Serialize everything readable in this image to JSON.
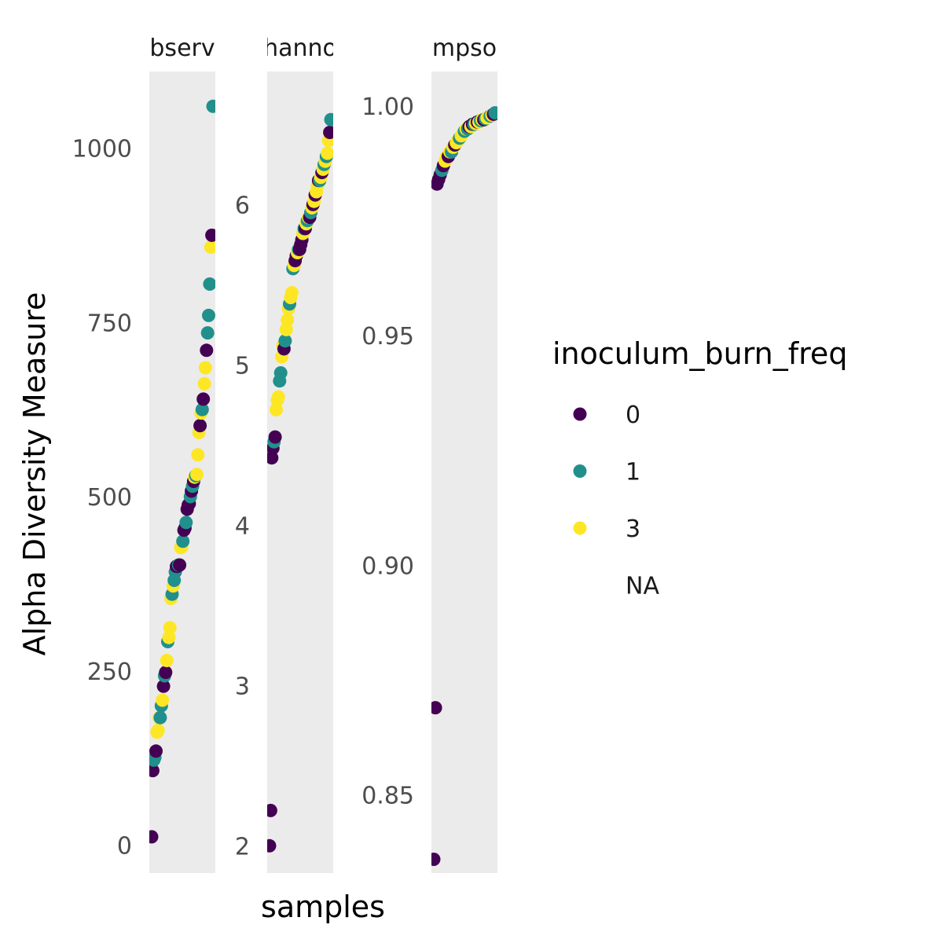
{
  "chart_data": {
    "type": "scatter",
    "ylabel": "Alpha Diversity Measure",
    "xlabel": "samples",
    "legend": {
      "title": "inoculum_burn_freq",
      "placement": "right",
      "entries": [
        {
          "label": "0",
          "color": "#440154"
        },
        {
          "label": "1",
          "color": "#21908C"
        },
        {
          "label": "3",
          "color": "#FDE725"
        },
        {
          "label": "NA",
          "color": null
        }
      ]
    },
    "panels": [
      {
        "title": "Observed",
        "ylim": [
          -40,
          1110
        ],
        "yticks": [
          0,
          250,
          500,
          750,
          1000
        ],
        "ytick_labels": [
          "0",
          "250",
          "500",
          "750",
          "1000"
        ],
        "points": [
          {
            "x": 1,
            "y": 12,
            "g": "0"
          },
          {
            "x": 2,
            "y": 107,
            "g": "0"
          },
          {
            "x": 3,
            "y": 122,
            "g": "1"
          },
          {
            "x": 4,
            "y": 126,
            "g": "1"
          },
          {
            "x": 5,
            "y": 135,
            "g": "0"
          },
          {
            "x": 6,
            "y": 162,
            "g": "3"
          },
          {
            "x": 7,
            "y": 165,
            "g": "3"
          },
          {
            "x": 8,
            "y": 183,
            "g": "3"
          },
          {
            "x": 9,
            "y": 183,
            "g": "1"
          },
          {
            "x": 10,
            "y": 200,
            "g": "1"
          },
          {
            "x": 11,
            "y": 208,
            "g": "3"
          },
          {
            "x": 12,
            "y": 228,
            "g": "0"
          },
          {
            "x": 13,
            "y": 243,
            "g": "1"
          },
          {
            "x": 14,
            "y": 248,
            "g": "0"
          },
          {
            "x": 15,
            "y": 265,
            "g": "3"
          },
          {
            "x": 16,
            "y": 292,
            "g": "1"
          },
          {
            "x": 17,
            "y": 298,
            "g": "3"
          },
          {
            "x": 18,
            "y": 312,
            "g": "3"
          },
          {
            "x": 19,
            "y": 354,
            "g": "3"
          },
          {
            "x": 20,
            "y": 360,
            "g": "1"
          },
          {
            "x": 21,
            "y": 372,
            "g": "3"
          },
          {
            "x": 22,
            "y": 380,
            "g": "1"
          },
          {
            "x": 23,
            "y": 392,
            "g": "1"
          },
          {
            "x": 24,
            "y": 400,
            "g": "0"
          },
          {
            "x": 25,
            "y": 400,
            "g": "0"
          },
          {
            "x": 26,
            "y": 402,
            "g": "1"
          },
          {
            "x": 27,
            "y": 402,
            "g": "0"
          },
          {
            "x": 28,
            "y": 427,
            "g": "3"
          },
          {
            "x": 29,
            "y": 428,
            "g": "3"
          },
          {
            "x": 30,
            "y": 436,
            "g": "1"
          },
          {
            "x": 31,
            "y": 452,
            "g": "0"
          },
          {
            "x": 32,
            "y": 455,
            "g": "0"
          },
          {
            "x": 33,
            "y": 463,
            "g": "1"
          },
          {
            "x": 34,
            "y": 482,
            "g": "0"
          },
          {
            "x": 35,
            "y": 488,
            "g": "0"
          },
          {
            "x": 36,
            "y": 490,
            "g": "0"
          },
          {
            "x": 37,
            "y": 500,
            "g": "1"
          },
          {
            "x": 38,
            "y": 508,
            "g": "0"
          },
          {
            "x": 39,
            "y": 515,
            "g": "1"
          },
          {
            "x": 40,
            "y": 522,
            "g": "0"
          },
          {
            "x": 41,
            "y": 528,
            "g": "3"
          },
          {
            "x": 42,
            "y": 530,
            "g": "1"
          },
          {
            "x": 43,
            "y": 532,
            "g": "3"
          },
          {
            "x": 44,
            "y": 560,
            "g": "3"
          },
          {
            "x": 45,
            "y": 592,
            "g": "3"
          },
          {
            "x": 46,
            "y": 602,
            "g": "0"
          },
          {
            "x": 47,
            "y": 620,
            "g": "3"
          },
          {
            "x": 48,
            "y": 625,
            "g": "1"
          },
          {
            "x": 49,
            "y": 640,
            "g": "0"
          },
          {
            "x": 50,
            "y": 662,
            "g": "3"
          },
          {
            "x": 51,
            "y": 685,
            "g": "3"
          },
          {
            "x": 52,
            "y": 710,
            "g": "0"
          },
          {
            "x": 53,
            "y": 735,
            "g": "1"
          },
          {
            "x": 54,
            "y": 760,
            "g": "1"
          },
          {
            "x": 55,
            "y": 805,
            "g": "1"
          },
          {
            "x": 56,
            "y": 858,
            "g": "3"
          },
          {
            "x": 57,
            "y": 875,
            "g": "0"
          },
          {
            "x": 58,
            "y": 1060,
            "g": "1"
          }
        ]
      },
      {
        "title": "Shannon",
        "ylim": [
          1.83,
          6.83
        ],
        "yticks": [
          2,
          3,
          4,
          5,
          6
        ],
        "ytick_labels": [
          "2",
          "3",
          "4",
          "5",
          "6"
        ],
        "points": [
          {
            "x": 1,
            "y": 2.0,
            "g": "0"
          },
          {
            "x": 2,
            "y": 2.22,
            "g": "0"
          },
          {
            "x": 3,
            "y": 4.42,
            "g": "0"
          },
          {
            "x": 4,
            "y": 4.48,
            "g": "0"
          },
          {
            "x": 5,
            "y": 4.52,
            "g": "1"
          },
          {
            "x": 6,
            "y": 4.55,
            "g": "0"
          },
          {
            "x": 7,
            "y": 4.72,
            "g": "3"
          },
          {
            "x": 8,
            "y": 4.78,
            "g": "3"
          },
          {
            "x": 9,
            "y": 4.8,
            "g": "3"
          },
          {
            "x": 10,
            "y": 4.9,
            "g": "1"
          },
          {
            "x": 11,
            "y": 4.95,
            "g": "1"
          },
          {
            "x": 12,
            "y": 5.05,
            "g": "3"
          },
          {
            "x": 13,
            "y": 5.12,
            "g": "3"
          },
          {
            "x": 14,
            "y": 5.1,
            "g": "0"
          },
          {
            "x": 15,
            "y": 5.15,
            "g": "1"
          },
          {
            "x": 16,
            "y": 5.22,
            "g": "3"
          },
          {
            "x": 17,
            "y": 5.28,
            "g": "3"
          },
          {
            "x": 18,
            "y": 5.35,
            "g": "3"
          },
          {
            "x": 19,
            "y": 5.38,
            "g": "1"
          },
          {
            "x": 20,
            "y": 5.42,
            "g": "3"
          },
          {
            "x": 21,
            "y": 5.45,
            "g": "3"
          },
          {
            "x": 22,
            "y": 5.6,
            "g": "1"
          },
          {
            "x": 23,
            "y": 5.62,
            "g": "3"
          },
          {
            "x": 24,
            "y": 5.65,
            "g": "0"
          },
          {
            "x": 25,
            "y": 5.68,
            "g": "0"
          },
          {
            "x": 26,
            "y": 5.7,
            "g": "3"
          },
          {
            "x": 27,
            "y": 5.72,
            "g": "1"
          },
          {
            "x": 28,
            "y": 5.72,
            "g": "0"
          },
          {
            "x": 29,
            "y": 5.75,
            "g": "0"
          },
          {
            "x": 30,
            "y": 5.78,
            "g": "0"
          },
          {
            "x": 31,
            "y": 5.82,
            "g": "3"
          },
          {
            "x": 32,
            "y": 5.85,
            "g": "1"
          },
          {
            "x": 33,
            "y": 5.85,
            "g": "0"
          },
          {
            "x": 34,
            "y": 5.88,
            "g": "3"
          },
          {
            "x": 35,
            "y": 5.9,
            "g": "1"
          },
          {
            "x": 36,
            "y": 5.92,
            "g": "3"
          },
          {
            "x": 37,
            "y": 5.92,
            "g": "0"
          },
          {
            "x": 38,
            "y": 5.95,
            "g": "1"
          },
          {
            "x": 39,
            "y": 5.98,
            "g": "3"
          },
          {
            "x": 40,
            "y": 6.0,
            "g": "0"
          },
          {
            "x": 41,
            "y": 6.02,
            "g": "3"
          },
          {
            "x": 42,
            "y": 6.06,
            "g": "0"
          },
          {
            "x": 43,
            "y": 6.08,
            "g": "3"
          },
          {
            "x": 44,
            "y": 6.12,
            "g": "3"
          },
          {
            "x": 45,
            "y": 6.15,
            "g": "0"
          },
          {
            "x": 46,
            "y": 6.15,
            "g": "1"
          },
          {
            "x": 47,
            "y": 6.17,
            "g": "3"
          },
          {
            "x": 48,
            "y": 6.2,
            "g": "0"
          },
          {
            "x": 49,
            "y": 6.22,
            "g": "3"
          },
          {
            "x": 50,
            "y": 6.25,
            "g": "1"
          },
          {
            "x": 51,
            "y": 6.27,
            "g": "3"
          },
          {
            "x": 52,
            "y": 6.3,
            "g": "1"
          },
          {
            "x": 53,
            "y": 6.32,
            "g": "3"
          },
          {
            "x": 54,
            "y": 6.4,
            "g": "3"
          },
          {
            "x": 55,
            "y": 6.45,
            "g": "0"
          },
          {
            "x": 56,
            "y": 6.53,
            "g": "1"
          }
        ]
      },
      {
        "title": "Simpson",
        "ylim": [
          0.833,
          1.0075
        ],
        "yticks": [
          0.85,
          0.9,
          0.95,
          1.0
        ],
        "ytick_labels": [
          "0.85",
          "0.90",
          "0.95",
          "1.00"
        ],
        "points": [
          {
            "x": 1,
            "y": 0.836,
            "g": "0"
          },
          {
            "x": 2,
            "y": 0.869,
            "g": "0"
          },
          {
            "x": 3,
            "y": 0.983,
            "g": "0"
          },
          {
            "x": 4,
            "y": 0.984,
            "g": "0"
          },
          {
            "x": 5,
            "y": 0.985,
            "g": "0"
          },
          {
            "x": 6,
            "y": 0.986,
            "g": "1"
          },
          {
            "x": 7,
            "y": 0.987,
            "g": "0"
          },
          {
            "x": 8,
            "y": 0.988,
            "g": "3"
          },
          {
            "x": 9,
            "y": 0.989,
            "g": "3"
          },
          {
            "x": 10,
            "y": 0.989,
            "g": "0"
          },
          {
            "x": 11,
            "y": 0.99,
            "g": "3"
          },
          {
            "x": 12,
            "y": 0.99,
            "g": "1"
          },
          {
            "x": 13,
            "y": 0.991,
            "g": "3"
          },
          {
            "x": 14,
            "y": 0.9915,
            "g": "0"
          },
          {
            "x": 15,
            "y": 0.992,
            "g": "3"
          },
          {
            "x": 16,
            "y": 0.9925,
            "g": "3"
          },
          {
            "x": 17,
            "y": 0.993,
            "g": "1"
          },
          {
            "x": 18,
            "y": 0.9935,
            "g": "3"
          },
          {
            "x": 19,
            "y": 0.994,
            "g": "3"
          },
          {
            "x": 20,
            "y": 0.9945,
            "g": "1"
          },
          {
            "x": 21,
            "y": 0.995,
            "g": "3"
          },
          {
            "x": 22,
            "y": 0.995,
            "g": "1"
          },
          {
            "x": 23,
            "y": 0.9955,
            "g": "0"
          },
          {
            "x": 24,
            "y": 0.9955,
            "g": "3"
          },
          {
            "x": 25,
            "y": 0.996,
            "g": "0"
          },
          {
            "x": 26,
            "y": 0.996,
            "g": "1"
          },
          {
            "x": 27,
            "y": 0.9962,
            "g": "3"
          },
          {
            "x": 28,
            "y": 0.9965,
            "g": "0"
          },
          {
            "x": 29,
            "y": 0.9965,
            "g": "3"
          },
          {
            "x": 30,
            "y": 0.9968,
            "g": "1"
          },
          {
            "x": 31,
            "y": 0.997,
            "g": "3"
          },
          {
            "x": 32,
            "y": 0.997,
            "g": "0"
          },
          {
            "x": 33,
            "y": 0.9972,
            "g": "1"
          },
          {
            "x": 34,
            "y": 0.9974,
            "g": "3"
          },
          {
            "x": 35,
            "y": 0.9976,
            "g": "3"
          },
          {
            "x": 36,
            "y": 0.9978,
            "g": "1"
          },
          {
            "x": 37,
            "y": 0.998,
            "g": "3"
          },
          {
            "x": 38,
            "y": 0.9982,
            "g": "0"
          },
          {
            "x": 39,
            "y": 0.9985,
            "g": "1"
          }
        ]
      }
    ],
    "grid": false,
    "panel_background": "#EBEBEB"
  },
  "strip_labels": [
    "bserv",
    "hanno",
    "mpso"
  ]
}
